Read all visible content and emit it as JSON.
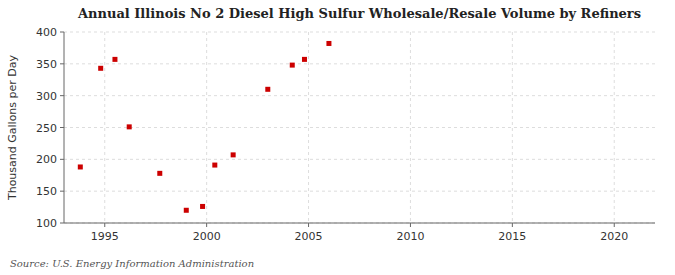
{
  "chart_data": {
    "type": "scatter",
    "title": "Annual Illinois No 2 Diesel High Sulfur Wholesale/Resale Volume by Refiners",
    "ylabel": "Thousand Gallons per Day",
    "annotations": [
      "Source: U.S. Energy Information Administration"
    ],
    "x": [
      1993.8,
      1994.8,
      1995.5,
      1996.2,
      1997.7,
      1999.0,
      1999.8,
      2000.4,
      2001.3,
      2003.0,
      2004.2,
      2004.8,
      2006.0
    ],
    "values": [
      188,
      343,
      357,
      251,
      178,
      120,
      126,
      191,
      207,
      310,
      348,
      357,
      382
    ],
    "color": "#cc0000",
    "marker": "square",
    "xlim": [
      1993,
      2022
    ],
    "ylim": [
      100,
      400
    ],
    "xticks": [
      1995,
      2000,
      2005,
      2010,
      2015,
      2020
    ],
    "yticks": [
      100,
      150,
      200,
      250,
      300,
      350,
      400
    ],
    "grid": true
  }
}
